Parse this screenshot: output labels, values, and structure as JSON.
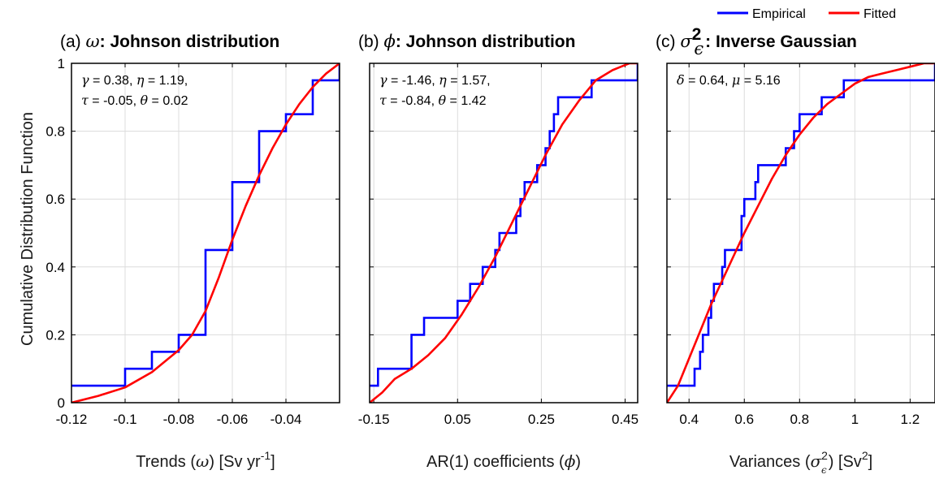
{
  "legend": {
    "empirical": "Empirical",
    "fitted": "Fitted",
    "empirical_color": "#0000ff",
    "fitted_color": "#ff0000",
    "placement": "top-right"
  },
  "ylabel": "Cumulative Distribution Function",
  "yticks": [
    "0",
    "0.2",
    "0.4",
    "0.6",
    "0.8",
    "1"
  ],
  "chart_data": [
    {
      "type": "line",
      "panel_letter": "(a)",
      "title_symbol": "ω",
      "title_text": ": Johnson distribution",
      "xlabel_pre": "Trends (",
      "xlabel_symbol": "ω",
      "xlabel_mid": ") [Sv yr",
      "xlabel_sup": "-1",
      "xlabel_post": "]",
      "xlim": [
        -0.12,
        -0.02
      ],
      "ylim": [
        0,
        1
      ],
      "grid": true,
      "xticks": [
        -0.12,
        -0.1,
        -0.08,
        -0.06,
        -0.04
      ],
      "xtick_labels": [
        "-0.12",
        "-0.1",
        "-0.08",
        "-0.06",
        "-0.04"
      ],
      "annotation": [
        [
          {
            "g": "γ"
          },
          {
            "t": " = 0.38, "
          },
          {
            "g": "η"
          },
          {
            "t": " = 1.19,"
          }
        ],
        [
          {
            "g": "τ"
          },
          {
            "t": " = -0.05, "
          },
          {
            "g": "θ"
          },
          {
            "t": " = 0.02"
          }
        ]
      ],
      "empirical": {
        "x": [
          -0.12,
          -0.1,
          -0.09,
          -0.08,
          -0.07,
          -0.07,
          -0.06,
          -0.05,
          -0.04,
          -0.03,
          -0.02
        ],
        "y": [
          0.05,
          0.1,
          0.15,
          0.2,
          0.25,
          0.45,
          0.65,
          0.8,
          0.85,
          0.95,
          1.0
        ]
      },
      "fitted": {
        "x": [
          -0.12,
          -0.11,
          -0.1,
          -0.09,
          -0.08,
          -0.075,
          -0.07,
          -0.065,
          -0.06,
          -0.055,
          -0.05,
          -0.045,
          -0.04,
          -0.035,
          -0.03,
          -0.025,
          -0.02
        ],
        "y": [
          0.0,
          0.02,
          0.045,
          0.09,
          0.155,
          0.2,
          0.27,
          0.37,
          0.48,
          0.58,
          0.67,
          0.75,
          0.82,
          0.88,
          0.93,
          0.97,
          1.0
        ]
      }
    },
    {
      "type": "line",
      "panel_letter": "(b)",
      "title_symbol": "ϕ",
      "title_text": ": Johnson distribution",
      "xlabel_pre": "AR(1) coefficients (",
      "xlabel_symbol": "ϕ",
      "xlabel_mid": ")",
      "xlabel_sup": "",
      "xlabel_post": "",
      "xlim": [
        -0.16,
        0.48
      ],
      "ylim": [
        0,
        1
      ],
      "grid": true,
      "xticks": [
        -0.15,
        0.05,
        0.25,
        0.45
      ],
      "xtick_labels": [
        "-0.15",
        "0.05",
        "0.25",
        "0.45"
      ],
      "annotation": [
        [
          {
            "g": "γ"
          },
          {
            "t": " = -1.46, "
          },
          {
            "g": "η"
          },
          {
            "t": " = 1.57,"
          }
        ],
        [
          {
            "g": "τ"
          },
          {
            "t": " = -0.84, "
          },
          {
            "g": "θ"
          },
          {
            "t": " = 1.42"
          }
        ]
      ],
      "empirical": {
        "x": [
          -0.16,
          -0.14,
          -0.06,
          -0.03,
          0.05,
          0.08,
          0.11,
          0.14,
          0.15,
          0.19,
          0.2,
          0.21,
          0.24,
          0.26,
          0.27,
          0.28,
          0.29,
          0.3,
          0.37,
          0.48
        ],
        "y": [
          0.05,
          0.1,
          0.2,
          0.25,
          0.3,
          0.35,
          0.4,
          0.45,
          0.5,
          0.55,
          0.6,
          0.65,
          0.7,
          0.75,
          0.8,
          0.85,
          0.9,
          0.9,
          0.95,
          1.0
        ]
      },
      "fitted": {
        "x": [
          -0.16,
          -0.13,
          -0.1,
          -0.06,
          -0.02,
          0.02,
          0.06,
          0.1,
          0.14,
          0.18,
          0.22,
          0.26,
          0.3,
          0.34,
          0.38,
          0.42,
          0.46,
          0.48
        ],
        "y": [
          0.0,
          0.03,
          0.07,
          0.1,
          0.14,
          0.19,
          0.26,
          0.34,
          0.43,
          0.53,
          0.63,
          0.73,
          0.82,
          0.89,
          0.95,
          0.98,
          1.0,
          1.0
        ]
      }
    },
    {
      "type": "line",
      "panel_letter": "(c)",
      "title_symbol": "σ",
      "title_sub": "ϵ",
      "title_sup": "2",
      "title_text": ": Inverse Gaussian",
      "xlabel_pre": "Variances (",
      "xlabel_symbol": "σ",
      "xlabel_sub": "ϵ",
      "xlabel_sup2": "2",
      "xlabel_mid": ") [Sv",
      "xlabel_sup": "2",
      "xlabel_post": "]",
      "xlim": [
        0.32,
        1.29
      ],
      "ylim": [
        0,
        1
      ],
      "grid": true,
      "xticks": [
        0.4,
        0.6,
        0.8,
        1.0,
        1.2
      ],
      "xtick_labels": [
        "0.4",
        "0.6",
        "0.8",
        "1",
        "1.2"
      ],
      "annotation": [
        [
          {
            "g": "δ"
          },
          {
            "t": " = 0.64, "
          },
          {
            "g": "μ"
          },
          {
            "t": " = 5.16"
          }
        ]
      ],
      "empirical": {
        "x": [
          0.32,
          0.42,
          0.44,
          0.45,
          0.47,
          0.48,
          0.49,
          0.52,
          0.53,
          0.55,
          0.59,
          0.6,
          0.64,
          0.65,
          0.66,
          0.75,
          0.78,
          0.8,
          0.88,
          0.96,
          1.06,
          1.29
        ],
        "y": [
          0.05,
          0.1,
          0.15,
          0.2,
          0.25,
          0.3,
          0.35,
          0.4,
          0.45,
          0.45,
          0.55,
          0.6,
          0.65,
          0.7,
          0.7,
          0.75,
          0.8,
          0.85,
          0.9,
          0.95,
          0.95,
          1.0
        ]
      },
      "fitted": {
        "x": [
          0.32,
          0.36,
          0.4,
          0.44,
          0.48,
          0.52,
          0.56,
          0.6,
          0.65,
          0.7,
          0.75,
          0.8,
          0.85,
          0.9,
          0.95,
          1.0,
          1.05,
          1.1,
          1.15,
          1.2,
          1.25,
          1.29
        ],
        "y": [
          0.0,
          0.05,
          0.13,
          0.21,
          0.29,
          0.36,
          0.43,
          0.5,
          0.58,
          0.66,
          0.73,
          0.79,
          0.84,
          0.88,
          0.91,
          0.94,
          0.96,
          0.97,
          0.98,
          0.99,
          1.0,
          1.0
        ]
      }
    }
  ]
}
